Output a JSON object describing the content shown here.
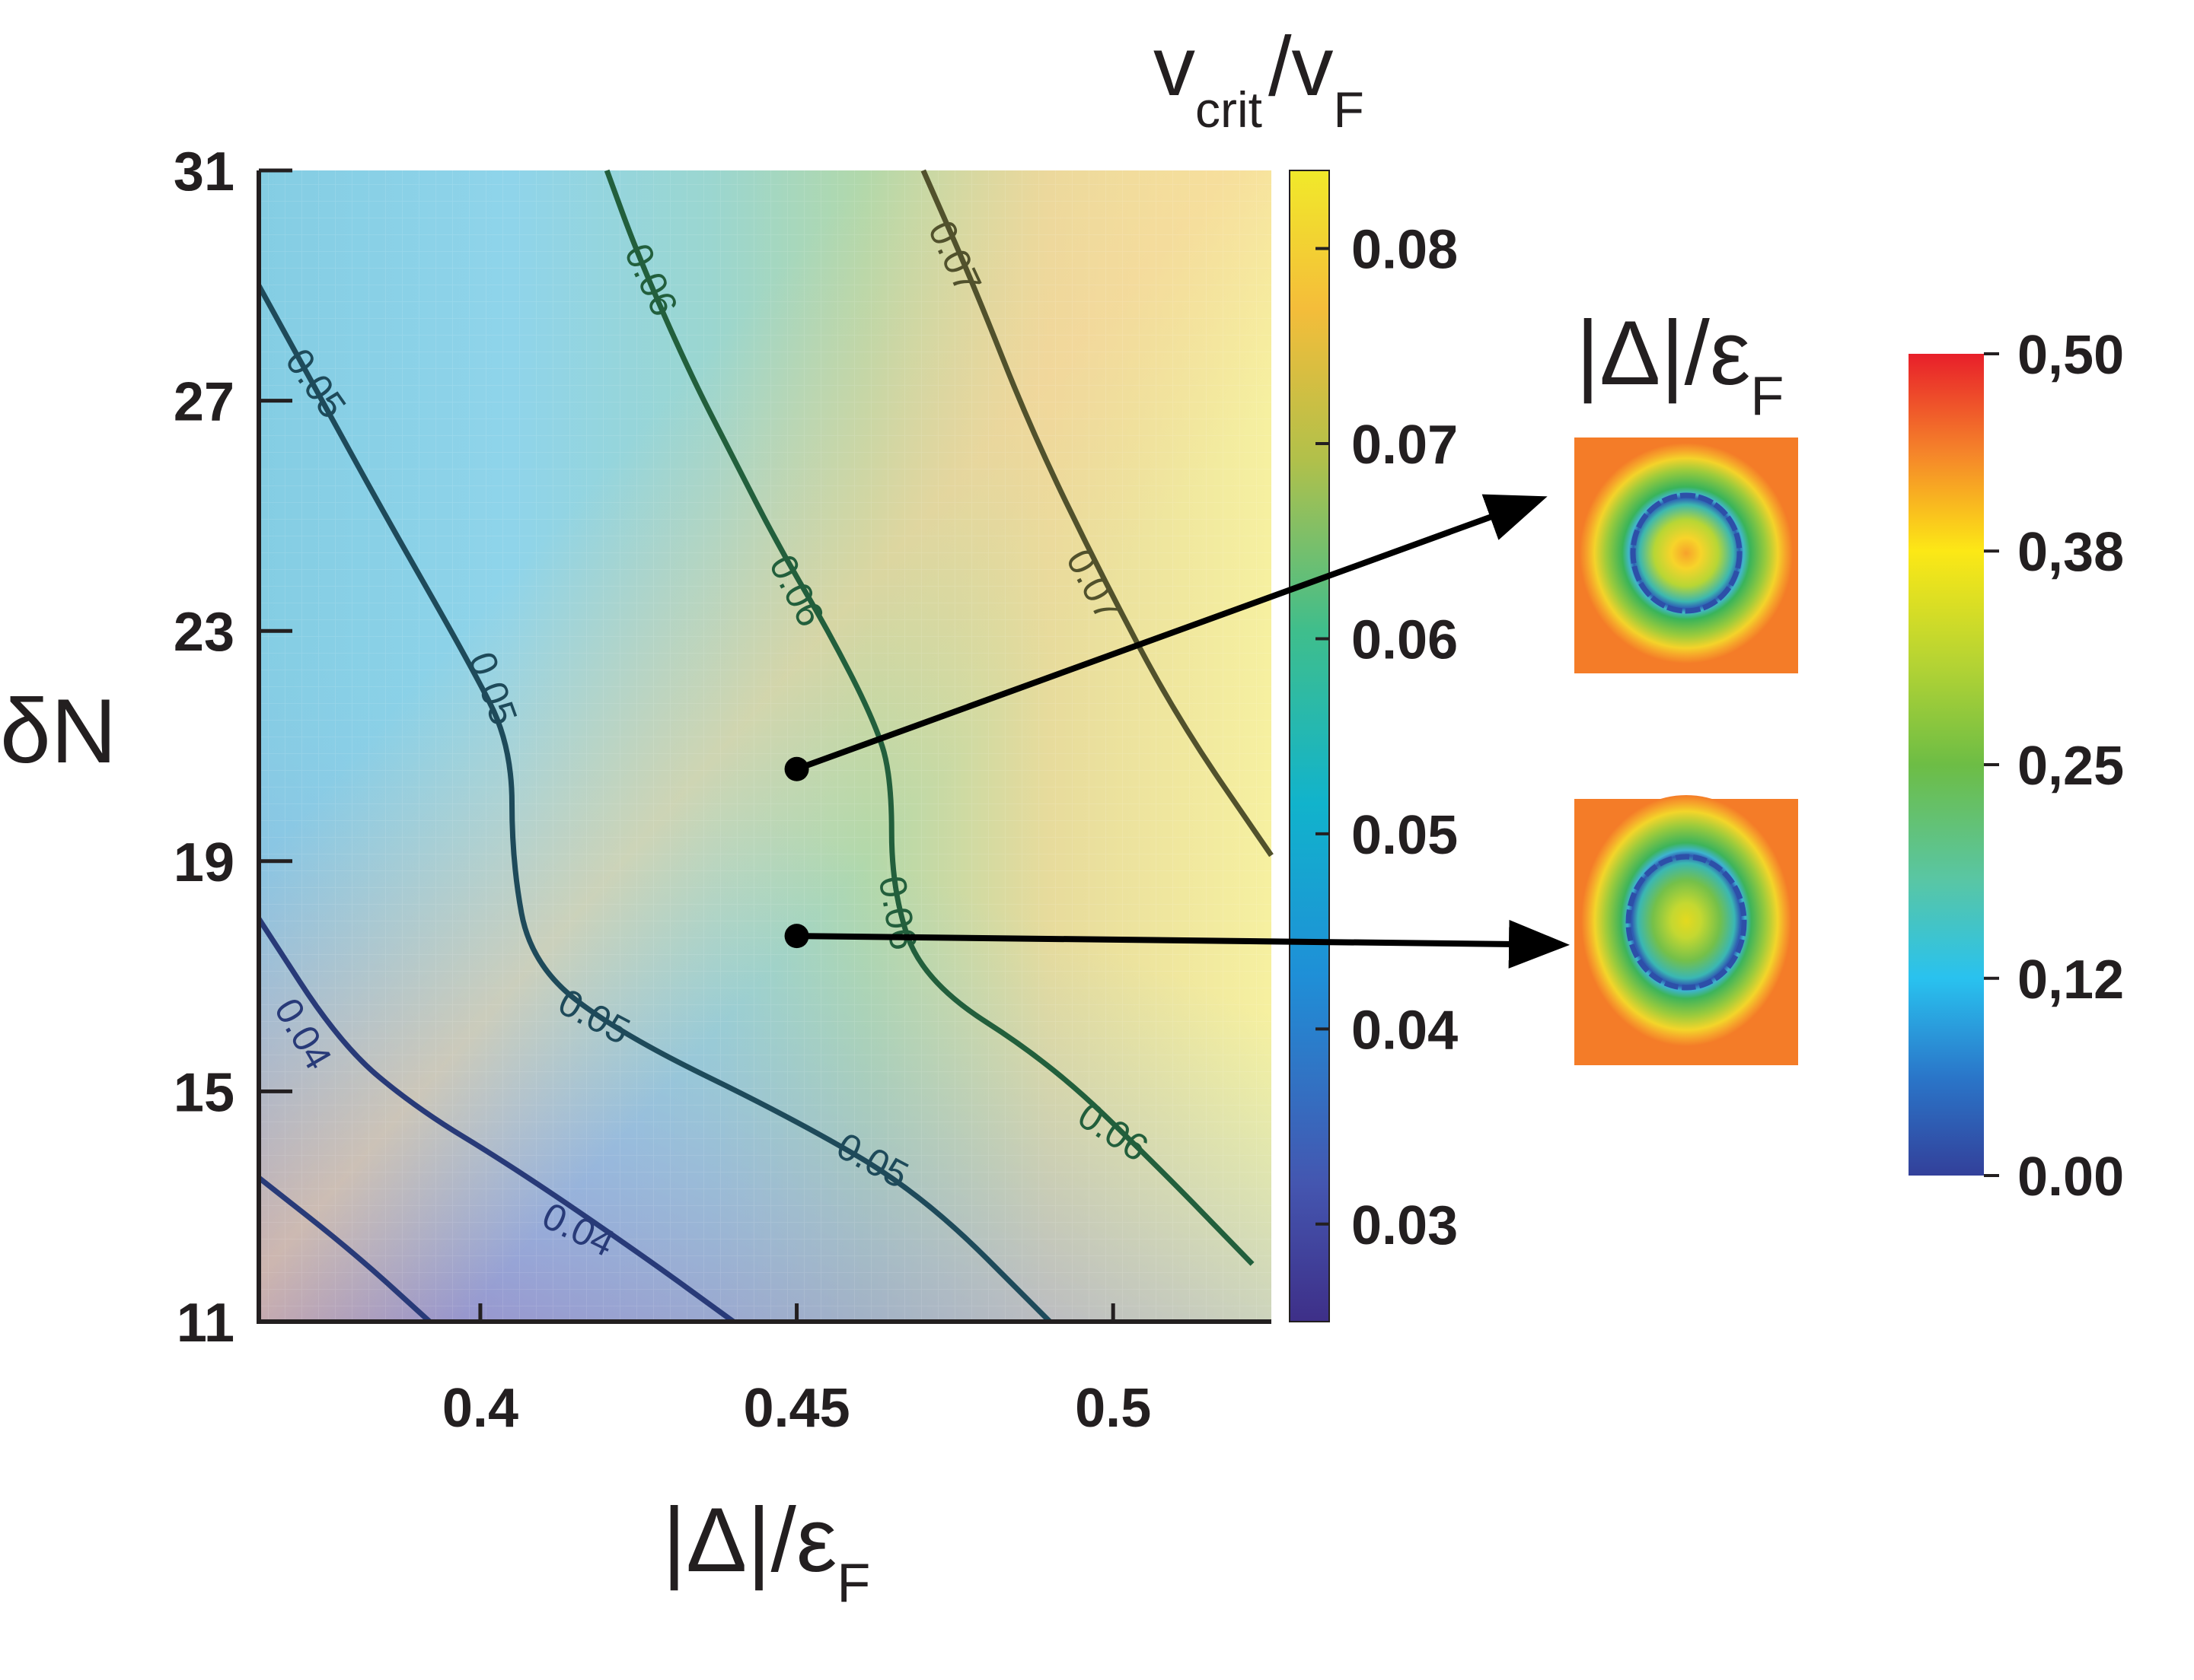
{
  "chart_data": [
    {
      "type": "heatmap",
      "subtype": "filled-contour",
      "title": "",
      "xlabel": "|Δ|/ε",
      "xlabel_sub": "F",
      "ylabel": "δN",
      "xlim": [
        0.365,
        0.525
      ],
      "ylim": [
        11,
        31
      ],
      "x_ticks": [
        0.4,
        0.45,
        0.5
      ],
      "x_tick_labels": [
        "0.4",
        "0.45",
        "0.5"
      ],
      "y_ticks": [
        11,
        15,
        19,
        23,
        27,
        31
      ],
      "y_tick_labels": [
        "11",
        "15",
        "19",
        "23",
        "27",
        "31"
      ],
      "colorbar": {
        "title_main": "v",
        "title_sub1": "crit",
        "title_slash": "/v",
        "title_sub2": "F",
        "range": [
          0.025,
          0.084
        ],
        "ticks": [
          0.03,
          0.04,
          0.05,
          0.06,
          0.07,
          0.08
        ],
        "tick_labels": [
          "0.03",
          "0.04",
          "0.05",
          "0.06",
          "0.07",
          "0.08"
        ]
      },
      "contours": [
        {
          "level": 0.04,
          "label": "0.04",
          "points": [
            [
              0.365,
              13.5
            ],
            [
              0.38,
              12.2
            ],
            [
              0.392,
              11.0
            ]
          ]
        },
        {
          "level": 0.04,
          "label": "0.04",
          "points": [
            [
              0.365,
              18.0
            ],
            [
              0.378,
              15.8
            ],
            [
              0.39,
              14.7
            ],
            [
              0.405,
              13.7
            ],
            [
              0.425,
              12.2
            ],
            [
              0.44,
              11.0
            ]
          ]
        },
        {
          "level": 0.05,
          "label": "0.05",
          "points": [
            [
              0.365,
              29.0
            ],
            [
              0.375,
              27.0
            ],
            [
              0.385,
              25.0
            ],
            [
              0.398,
              22.5
            ],
            [
              0.405,
              21.0
            ],
            [
              0.405,
              19.0
            ],
            [
              0.408,
              17.2
            ],
            [
              0.422,
              16.0
            ],
            [
              0.45,
              14.5
            ],
            [
              0.47,
              13.2
            ],
            [
              0.49,
              11.0
            ]
          ]
        },
        {
          "level": 0.06,
          "label": "0.06",
          "points": [
            [
              0.42,
              31.0
            ],
            [
              0.425,
              29.5
            ],
            [
              0.433,
              27.5
            ],
            [
              0.44,
              26.0
            ],
            [
              0.447,
              24.5
            ],
            [
              0.455,
              23.0
            ],
            [
              0.462,
              21.5
            ],
            [
              0.465,
              20.5
            ],
            [
              0.465,
              18.5
            ],
            [
              0.47,
              16.9
            ],
            [
              0.49,
              15.5
            ],
            [
              0.507,
              13.7
            ],
            [
              0.522,
              12.0
            ]
          ]
        },
        {
          "level": 0.07,
          "label": "0.07",
          "points": [
            [
              0.47,
              31.0
            ],
            [
              0.478,
              29.0
            ],
            [
              0.487,
              26.5
            ],
            [
              0.498,
              24.0
            ],
            [
              0.51,
              21.5
            ],
            [
              0.525,
              19.1
            ]
          ]
        }
      ],
      "contour_labels": [
        {
          "text": "0.04",
          "x": 0.372,
          "y": 16.0,
          "angle": 60
        },
        {
          "text": "0.04",
          "x": 0.4155,
          "y": 12.6,
          "angle": 26
        },
        {
          "text": "0.05",
          "x": 0.374,
          "y": 27.3,
          "angle": 55
        },
        {
          "text": "0.05",
          "x": 0.402,
          "y": 22.0,
          "angle": 70
        },
        {
          "text": "0.05",
          "x": 0.418,
          "y": 16.3,
          "angle": 28
        },
        {
          "text": "0.05",
          "x": 0.462,
          "y": 13.8,
          "angle": 28
        },
        {
          "text": "0.06",
          "x": 0.427,
          "y": 29.1,
          "angle": 65
        },
        {
          "text": "0.06",
          "x": 0.45,
          "y": 23.7,
          "angle": 63
        },
        {
          "text": "0.06",
          "x": 0.466,
          "y": 18.1,
          "angle": 80
        },
        {
          "text": "0.06",
          "x": 0.5,
          "y": 14.3,
          "angle": 33
        },
        {
          "text": "0.07",
          "x": 0.475,
          "y": 29.5,
          "angle": 65
        },
        {
          "text": "0.07",
          "x": 0.497,
          "y": 23.8,
          "angle": 62
        }
      ],
      "markers": [
        {
          "x": 0.45,
          "y": 20.6
        },
        {
          "x": 0.45,
          "y": 17.7
        }
      ]
    },
    {
      "type": "heatmap",
      "subtype": "density-insets",
      "title_main": "|Δ|/ε",
      "title_sub": "F",
      "colorbar": {
        "range": [
          0.0,
          0.5
        ],
        "ticks": [
          0.0,
          0.12,
          0.25,
          0.38,
          0.5
        ],
        "tick_labels": [
          "0.00",
          "0,12",
          "0,25",
          "0,38",
          "0,50"
        ]
      },
      "insets": [
        {
          "from_marker": 0,
          "center_value": 0.42,
          "ring_value": 0.03,
          "background_value": 0.47
        },
        {
          "from_marker": 1,
          "center_value": 0.36,
          "ring_value": 0.03,
          "background_value": 0.47
        }
      ]
    }
  ]
}
